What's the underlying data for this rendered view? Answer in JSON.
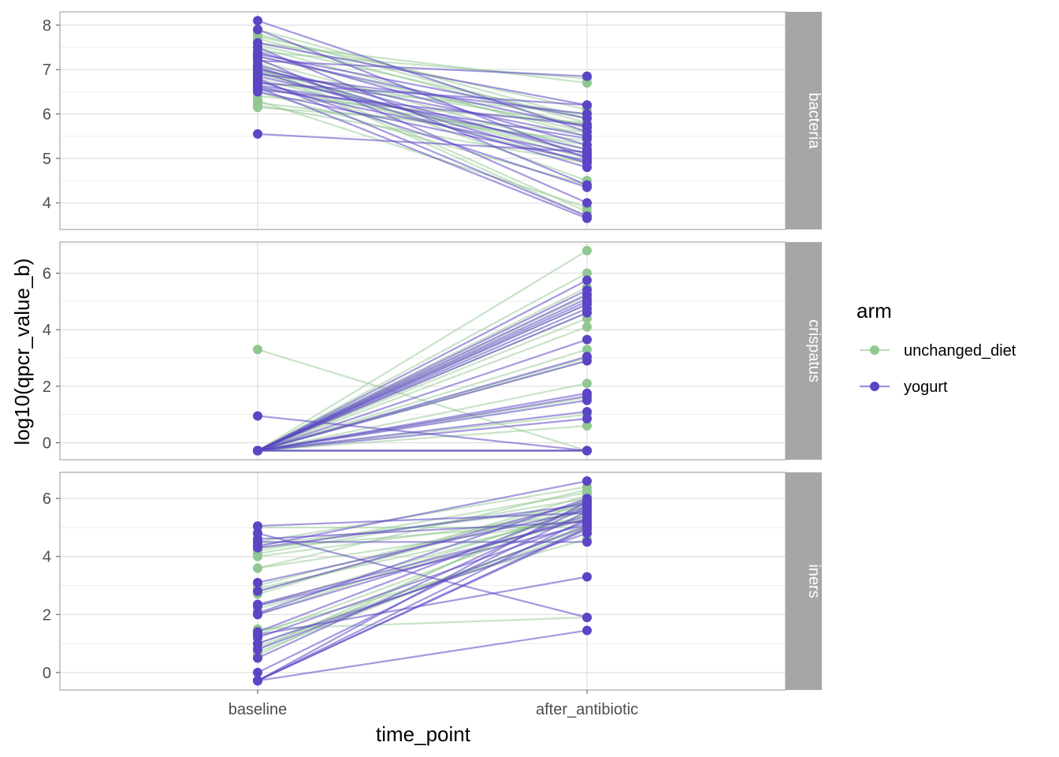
{
  "colors": {
    "unchanged_diet": "#91c791",
    "yogurt": "#5b45c5",
    "strip_bg": "#a6a6a6",
    "panel_border": "#a6a6a6",
    "grid_major": "#dedede",
    "grid_minor": "#eeeeee"
  },
  "chart_data": {
    "type": "line",
    "xlabel": "time_point",
    "ylabel": "log10(qpcr_value_b)",
    "categories": [
      "baseline",
      "after_antibiotic"
    ],
    "legend": {
      "title": "arm",
      "placement": "right",
      "entries": [
        "unchanged_diet",
        "yogurt"
      ]
    },
    "panels": [
      {
        "label": "bacteria",
        "ylim": [
          3.4,
          8.3
        ],
        "yticks": [
          4,
          5,
          6,
          7,
          8
        ],
        "series": [
          {
            "arm": "unchanged_diet",
            "pairs": [
              [
                7.9,
                5.9
              ],
              [
                7.8,
                5.8
              ],
              [
                7.75,
                6.1
              ],
              [
                7.7,
                5.7
              ],
              [
                7.6,
                6.7
              ],
              [
                7.55,
                5.9
              ],
              [
                7.5,
                5.5
              ],
              [
                7.4,
                6.8
              ],
              [
                7.3,
                5.6
              ],
              [
                7.2,
                5.2
              ],
              [
                7.15,
                4.5
              ],
              [
                7.1,
                3.8
              ],
              [
                7.0,
                5.0
              ],
              [
                6.9,
                5.1
              ],
              [
                6.8,
                4.9
              ],
              [
                6.7,
                6.0
              ],
              [
                6.6,
                5.3
              ],
              [
                6.5,
                4.4
              ],
              [
                6.4,
                5.8
              ],
              [
                6.3,
                3.9
              ],
              [
                6.25,
                5.4
              ],
              [
                6.2,
                4.9
              ],
              [
                6.15,
                5.6
              ],
              [
                7.05,
                3.7
              ],
              [
                6.95,
                5.75
              ]
            ]
          },
          {
            "arm": "yogurt",
            "pairs": [
              [
                8.1,
                5.6
              ],
              [
                7.9,
                5.0
              ],
              [
                7.6,
                6.2
              ],
              [
                7.5,
                4.4
              ],
              [
                7.4,
                5.3
              ],
              [
                7.35,
                5.9
              ],
              [
                7.3,
                5.7
              ],
              [
                7.25,
                4.0
              ],
              [
                7.2,
                6.85
              ],
              [
                7.1,
                5.1
              ],
              [
                7.05,
                4.9
              ],
              [
                7.0,
                5.5
              ],
              [
                6.95,
                4.8
              ],
              [
                6.9,
                6.0
              ],
              [
                6.85,
                5.2
              ],
              [
                6.8,
                3.7
              ],
              [
                6.75,
                4.35
              ],
              [
                6.7,
                6.2
              ],
              [
                6.65,
                5.45
              ],
              [
                6.6,
                3.65
              ],
              [
                6.55,
                5.75
              ],
              [
                6.5,
                4.95
              ],
              [
                5.55,
                5.15
              ],
              [
                6.62,
                5.05
              ]
            ]
          }
        ]
      },
      {
        "label": "crispatus",
        "ylim": [
          -0.6,
          7.1
        ],
        "yticks": [
          0,
          2,
          4,
          6
        ],
        "series": [
          {
            "arm": "unchanged_diet",
            "pairs": [
              [
                3.3,
                -0.28
              ],
              [
                -0.28,
                6.8
              ],
              [
                -0.28,
                6.0
              ],
              [
                -0.28,
                5.5
              ],
              [
                -0.28,
                4.6
              ],
              [
                -0.28,
                4.4
              ],
              [
                -0.28,
                4.1
              ],
              [
                -0.28,
                3.3
              ],
              [
                -0.28,
                2.9
              ],
              [
                -0.28,
                2.1
              ],
              [
                -0.28,
                1.6
              ],
              [
                -0.28,
                1.0
              ],
              [
                -0.28,
                0.6
              ],
              [
                -0.28,
                -0.28
              ],
              [
                -0.28,
                -0.28
              ],
              [
                -0.28,
                5.2
              ],
              [
                -0.28,
                4.9
              ],
              [
                -0.28,
                3.0
              ]
            ]
          },
          {
            "arm": "yogurt",
            "pairs": [
              [
                0.95,
                -0.28
              ],
              [
                -0.28,
                5.75
              ],
              [
                -0.28,
                5.4
              ],
              [
                -0.28,
                5.25
              ],
              [
                -0.28,
                5.1
              ],
              [
                -0.28,
                4.9
              ],
              [
                -0.28,
                4.75
              ],
              [
                -0.28,
                4.6
              ],
              [
                -0.28,
                3.65
              ],
              [
                -0.28,
                3.05
              ],
              [
                -0.28,
                2.9
              ],
              [
                -0.28,
                1.75
              ],
              [
                -0.28,
                1.65
              ],
              [
                -0.28,
                1.5
              ],
              [
                -0.28,
                1.1
              ],
              [
                -0.28,
                0.85
              ],
              [
                -0.28,
                -0.28
              ],
              [
                -0.28,
                -0.28
              ],
              [
                -0.28,
                5.0
              ]
            ]
          }
        ]
      },
      {
        "label": "iners",
        "ylim": [
          -0.6,
          6.9
        ],
        "yticks": [
          0,
          2,
          4,
          6
        ],
        "series": [
          {
            "arm": "unchanged_diet",
            "pairs": [
              [
                5.0,
                5.0
              ],
              [
                4.5,
                6.4
              ],
              [
                4.3,
                5.2
              ],
              [
                4.2,
                6.2
              ],
              [
                4.1,
                6.0
              ],
              [
                4.0,
                5.5
              ],
              [
                3.6,
                6.3
              ],
              [
                3.0,
                5.9
              ],
              [
                2.9,
                5.4
              ],
              [
                2.8,
                5.8
              ],
              [
                2.7,
                6.1
              ],
              [
                2.3,
                5.6
              ],
              [
                2.2,
                5.3
              ],
              [
                2.0,
                5.7
              ],
              [
                1.5,
                1.9
              ],
              [
                1.4,
                4.6
              ],
              [
                1.3,
                5.5
              ],
              [
                1.0,
                5.0
              ],
              [
                0.9,
                4.9
              ],
              [
                0.8,
                5.85
              ],
              [
                0.7,
                5.1
              ],
              [
                0.6,
                6.0
              ],
              [
                4.4,
                5.7
              ],
              [
                3.6,
                5.3
              ]
            ]
          },
          {
            "arm": "yogurt",
            "pairs": [
              [
                5.05,
                5.5
              ],
              [
                4.8,
                1.9
              ],
              [
                4.6,
                5.2
              ],
              [
                4.5,
                4.5
              ],
              [
                4.35,
                6.6
              ],
              [
                4.3,
                5.8
              ],
              [
                3.1,
                5.6
              ],
              [
                2.8,
                5.9
              ],
              [
                2.35,
                5.3
              ],
              [
                2.3,
                5.1
              ],
              [
                2.05,
                6.0
              ],
              [
                2.0,
                5.4
              ],
              [
                1.4,
                5.75
              ],
              [
                1.3,
                3.3
              ],
              [
                1.2,
                5.2
              ],
              [
                1.0,
                4.8
              ],
              [
                0.8,
                5.05
              ],
              [
                0.5,
                5.7
              ],
              [
                0.0,
                5.55
              ],
              [
                -0.28,
                5.9
              ],
              [
                -0.28,
                1.45
              ],
              [
                -0.28,
                5.0
              ],
              [
                -0.28,
                5.3
              ],
              [
                -0.28,
                4.95
              ]
            ]
          }
        ]
      }
    ]
  }
}
